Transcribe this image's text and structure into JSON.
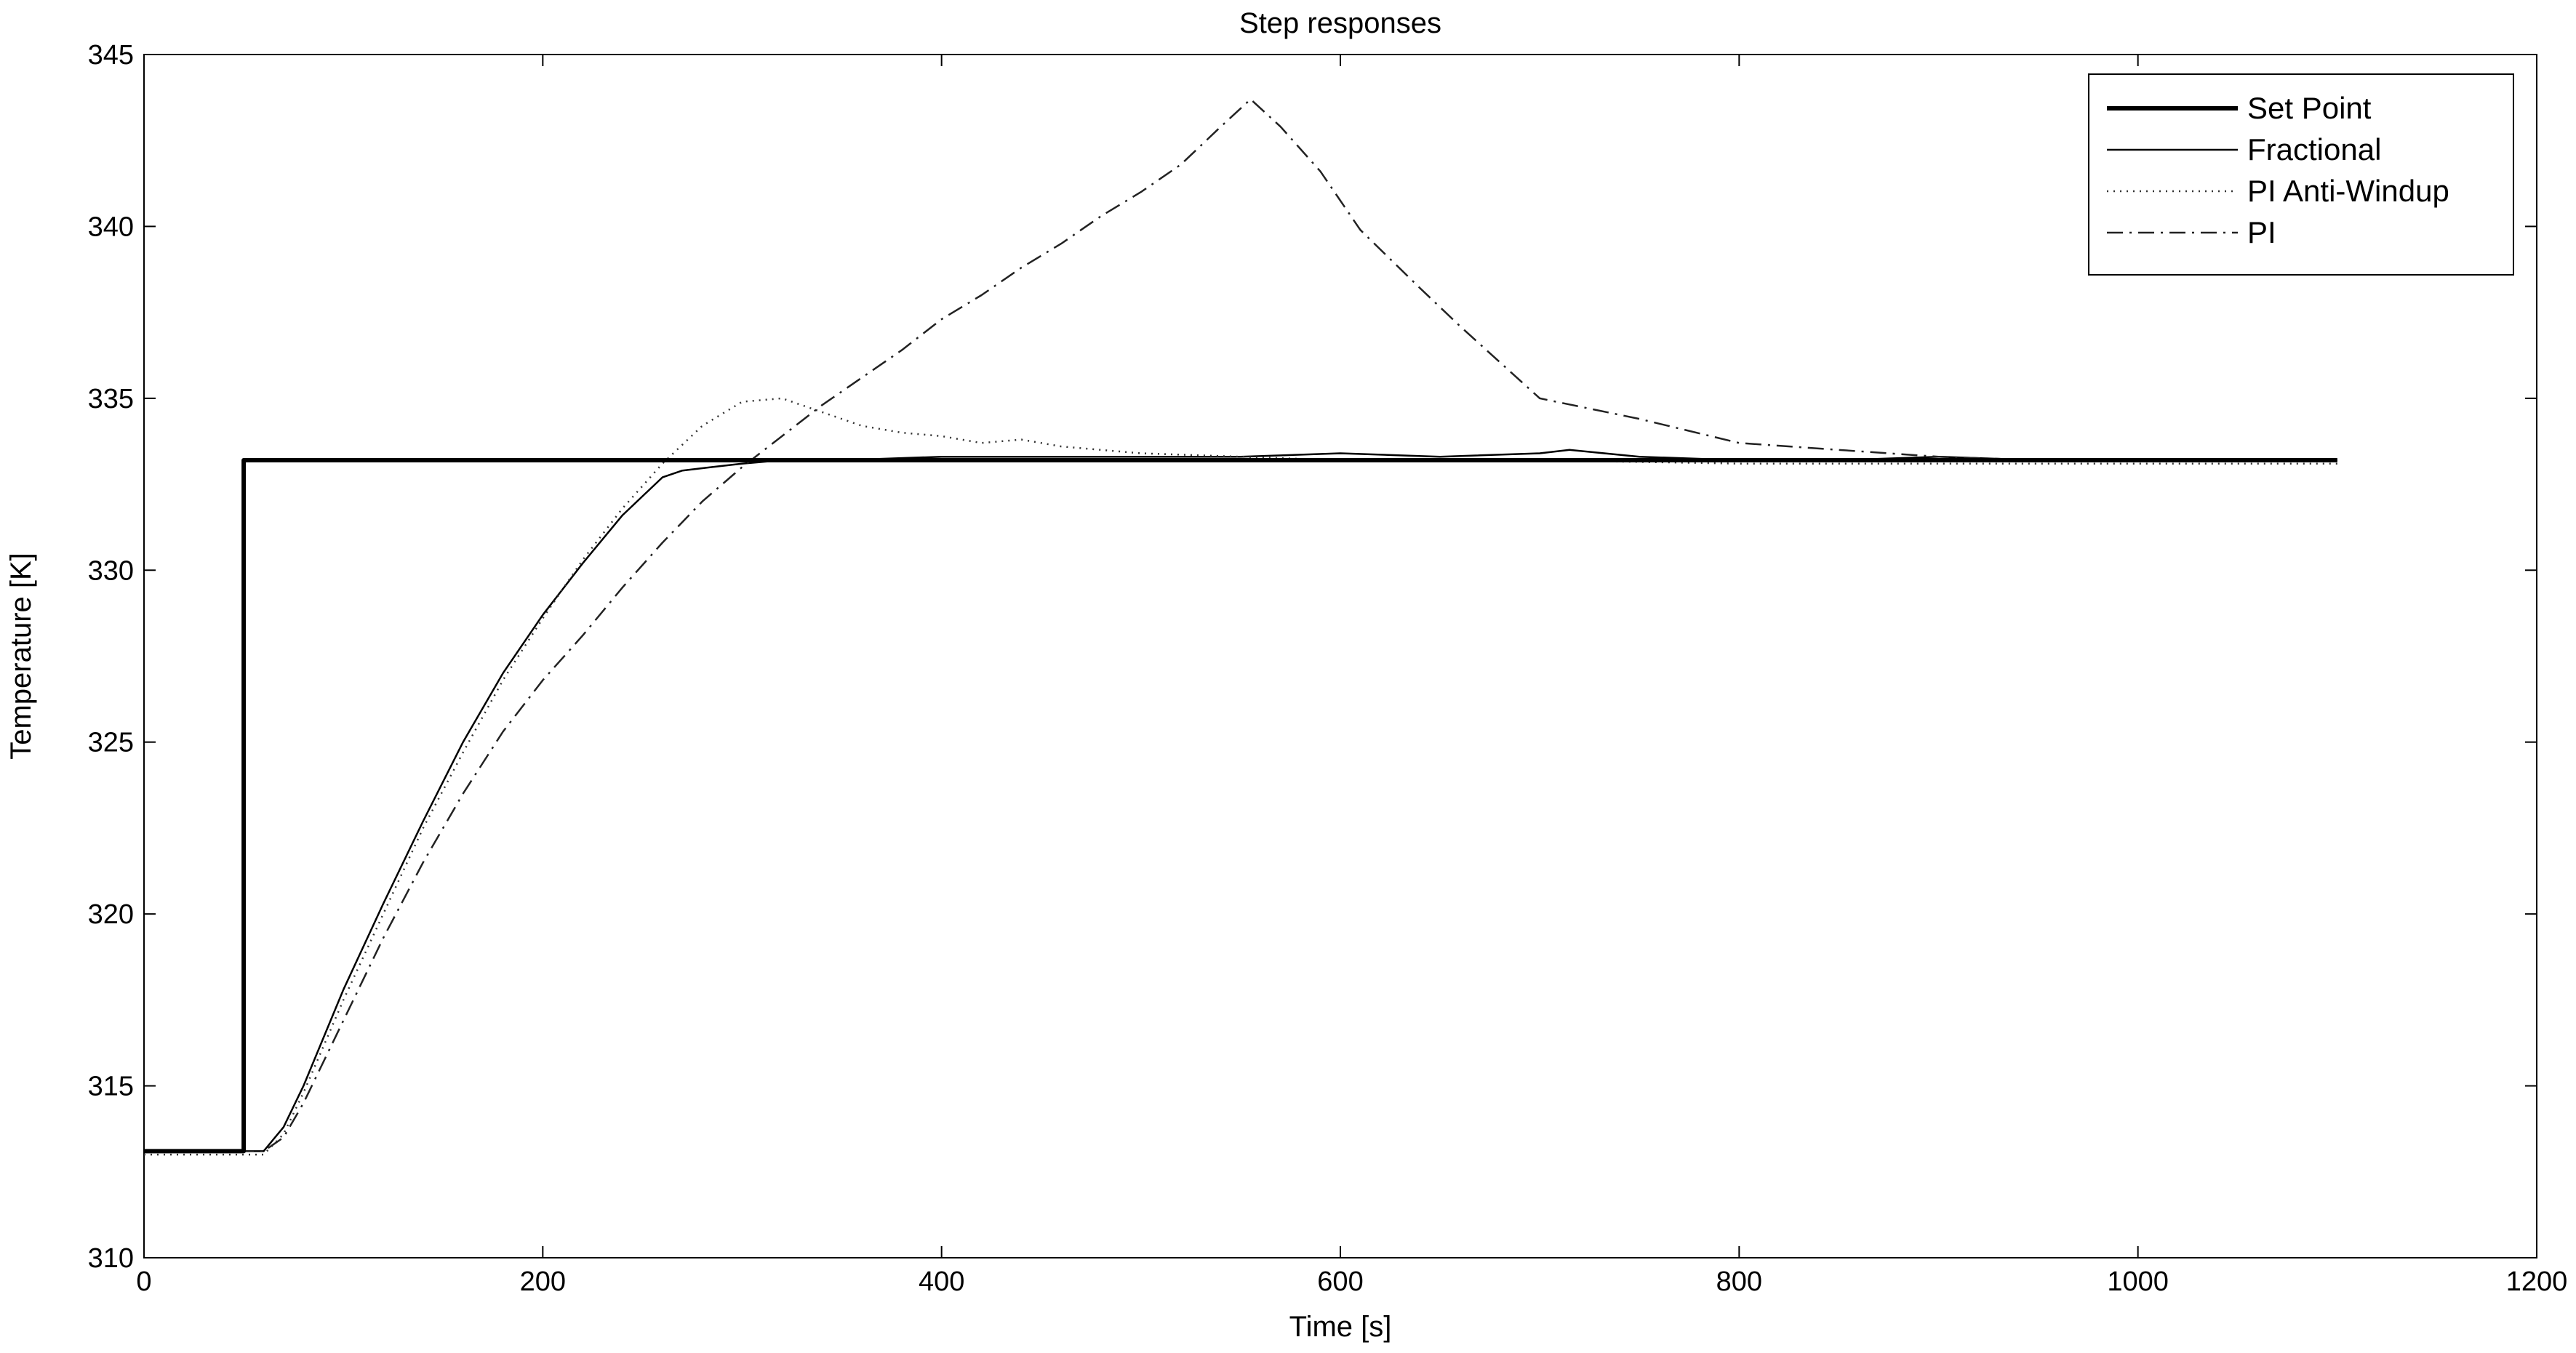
{
  "chart_data": {
    "type": "line",
    "title": "Step responses",
    "xlabel": "Time [s]",
    "ylabel": "Temperature [K]",
    "xlim": [
      0,
      1200
    ],
    "ylim": [
      310,
      345
    ],
    "xticks": [
      0,
      200,
      400,
      600,
      800,
      1000,
      1200
    ],
    "yticks": [
      310,
      315,
      320,
      325,
      330,
      335,
      340,
      345
    ],
    "grid": false,
    "legend_position": "top-right",
    "series": [
      {
        "name": "Set Point",
        "style": "thick-solid",
        "x": [
          0,
          50,
          50,
          1100
        ],
        "y": [
          313.1,
          313.1,
          333.2,
          333.2
        ]
      },
      {
        "name": "Fractional",
        "style": "solid",
        "x": [
          0,
          30,
          60,
          70,
          80,
          100,
          120,
          140,
          160,
          180,
          200,
          220,
          240,
          260,
          270,
          285,
          300,
          320,
          350,
          400,
          450,
          500,
          550,
          600,
          650,
          700,
          715,
          750,
          800,
          850,
          900,
          950,
          1000,
          1050,
          1100
        ],
        "y": [
          313.1,
          313.1,
          313.1,
          313.8,
          315.0,
          317.8,
          320.3,
          322.7,
          325.0,
          327.0,
          328.7,
          330.2,
          331.6,
          332.7,
          332.9,
          333.0,
          333.1,
          333.2,
          333.2,
          333.3,
          333.3,
          333.3,
          333.3,
          333.4,
          333.3,
          333.4,
          333.5,
          333.3,
          333.2,
          333.2,
          333.3,
          333.2,
          333.2,
          333.2,
          333.2
        ]
      },
      {
        "name": "PI Anti-Windup",
        "style": "dotted",
        "x": [
          0,
          30,
          60,
          70,
          80,
          100,
          120,
          140,
          160,
          180,
          200,
          220,
          240,
          260,
          280,
          300,
          320,
          340,
          360,
          380,
          400,
          420,
          440,
          460,
          480,
          500,
          550,
          600,
          650,
          700,
          800,
          900,
          1000,
          1100
        ],
        "y": [
          313.0,
          313.0,
          313.0,
          313.6,
          314.8,
          317.5,
          320.0,
          322.5,
          324.7,
          326.8,
          328.6,
          330.3,
          331.8,
          333.1,
          334.2,
          334.9,
          335.0,
          334.6,
          334.2,
          334.0,
          333.9,
          333.7,
          333.8,
          333.6,
          333.5,
          333.4,
          333.3,
          333.2,
          333.2,
          333.2,
          333.1,
          333.1,
          333.1,
          333.1
        ]
      },
      {
        "name": "PI",
        "style": "dash-dot",
        "x": [
          0,
          30,
          60,
          70,
          80,
          100,
          120,
          140,
          160,
          180,
          200,
          220,
          240,
          260,
          280,
          300,
          320,
          340,
          360,
          380,
          400,
          420,
          440,
          460,
          480,
          500,
          520,
          540,
          555,
          570,
          590,
          610,
          640,
          660,
          700,
          750,
          800,
          850,
          900,
          950,
          1000,
          1050,
          1100
        ],
        "y": [
          313.1,
          313.1,
          313.1,
          313.5,
          314.5,
          316.9,
          319.3,
          321.5,
          323.5,
          325.3,
          326.8,
          328.1,
          329.5,
          330.8,
          332.0,
          333.0,
          333.9,
          334.8,
          335.6,
          336.4,
          337.3,
          338.0,
          338.8,
          339.5,
          340.3,
          341.0,
          341.8,
          342.9,
          343.7,
          342.9,
          341.6,
          339.9,
          338.2,
          337.1,
          335.0,
          334.4,
          333.7,
          333.5,
          333.3,
          333.2,
          333.2,
          333.2,
          333.2
        ]
      }
    ]
  }
}
